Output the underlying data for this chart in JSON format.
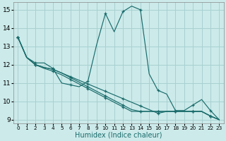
{
  "xlabel": "Humidex (Indice chaleur)",
  "xlim": [
    -0.5,
    23.5
  ],
  "ylim": [
    8.8,
    15.4
  ],
  "xticks": [
    0,
    1,
    2,
    3,
    4,
    5,
    6,
    7,
    8,
    9,
    10,
    11,
    12,
    13,
    14,
    15,
    16,
    17,
    18,
    19,
    20,
    21,
    22,
    23
  ],
  "yticks": [
    9,
    10,
    11,
    12,
    13,
    14,
    15
  ],
  "bg_color": "#cceaea",
  "grid_color": "#a8d0d0",
  "line_color": "#1a6b6b",
  "series": [
    [
      13.5,
      12.4,
      12.1,
      12.1,
      11.8,
      11.0,
      10.9,
      10.8,
      11.1,
      13.1,
      14.8,
      13.8,
      14.9,
      15.2,
      15.0,
      11.5,
      10.6,
      10.4,
      9.5,
      9.5,
      9.8,
      10.1,
      9.5,
      9.0
    ],
    [
      13.5,
      12.4,
      12.0,
      11.85,
      11.75,
      11.55,
      11.35,
      11.15,
      10.95,
      10.75,
      10.55,
      10.35,
      10.15,
      9.95,
      9.75,
      9.55,
      9.35,
      9.45,
      9.45,
      9.45,
      9.45,
      9.45,
      9.2,
      9.0
    ],
    [
      13.5,
      12.4,
      12.0,
      11.85,
      11.75,
      11.55,
      11.3,
      11.05,
      10.8,
      10.55,
      10.3,
      10.05,
      9.8,
      9.55,
      9.45,
      9.45,
      9.45,
      9.45,
      9.45,
      9.45,
      9.45,
      9.45,
      9.2,
      9.0
    ],
    [
      13.5,
      12.4,
      12.0,
      11.8,
      11.65,
      11.45,
      11.2,
      10.95,
      10.7,
      10.45,
      10.2,
      9.95,
      9.7,
      9.45,
      9.45,
      9.45,
      9.45,
      9.45,
      9.45,
      9.45,
      9.45,
      9.45,
      9.2,
      9.0
    ]
  ]
}
